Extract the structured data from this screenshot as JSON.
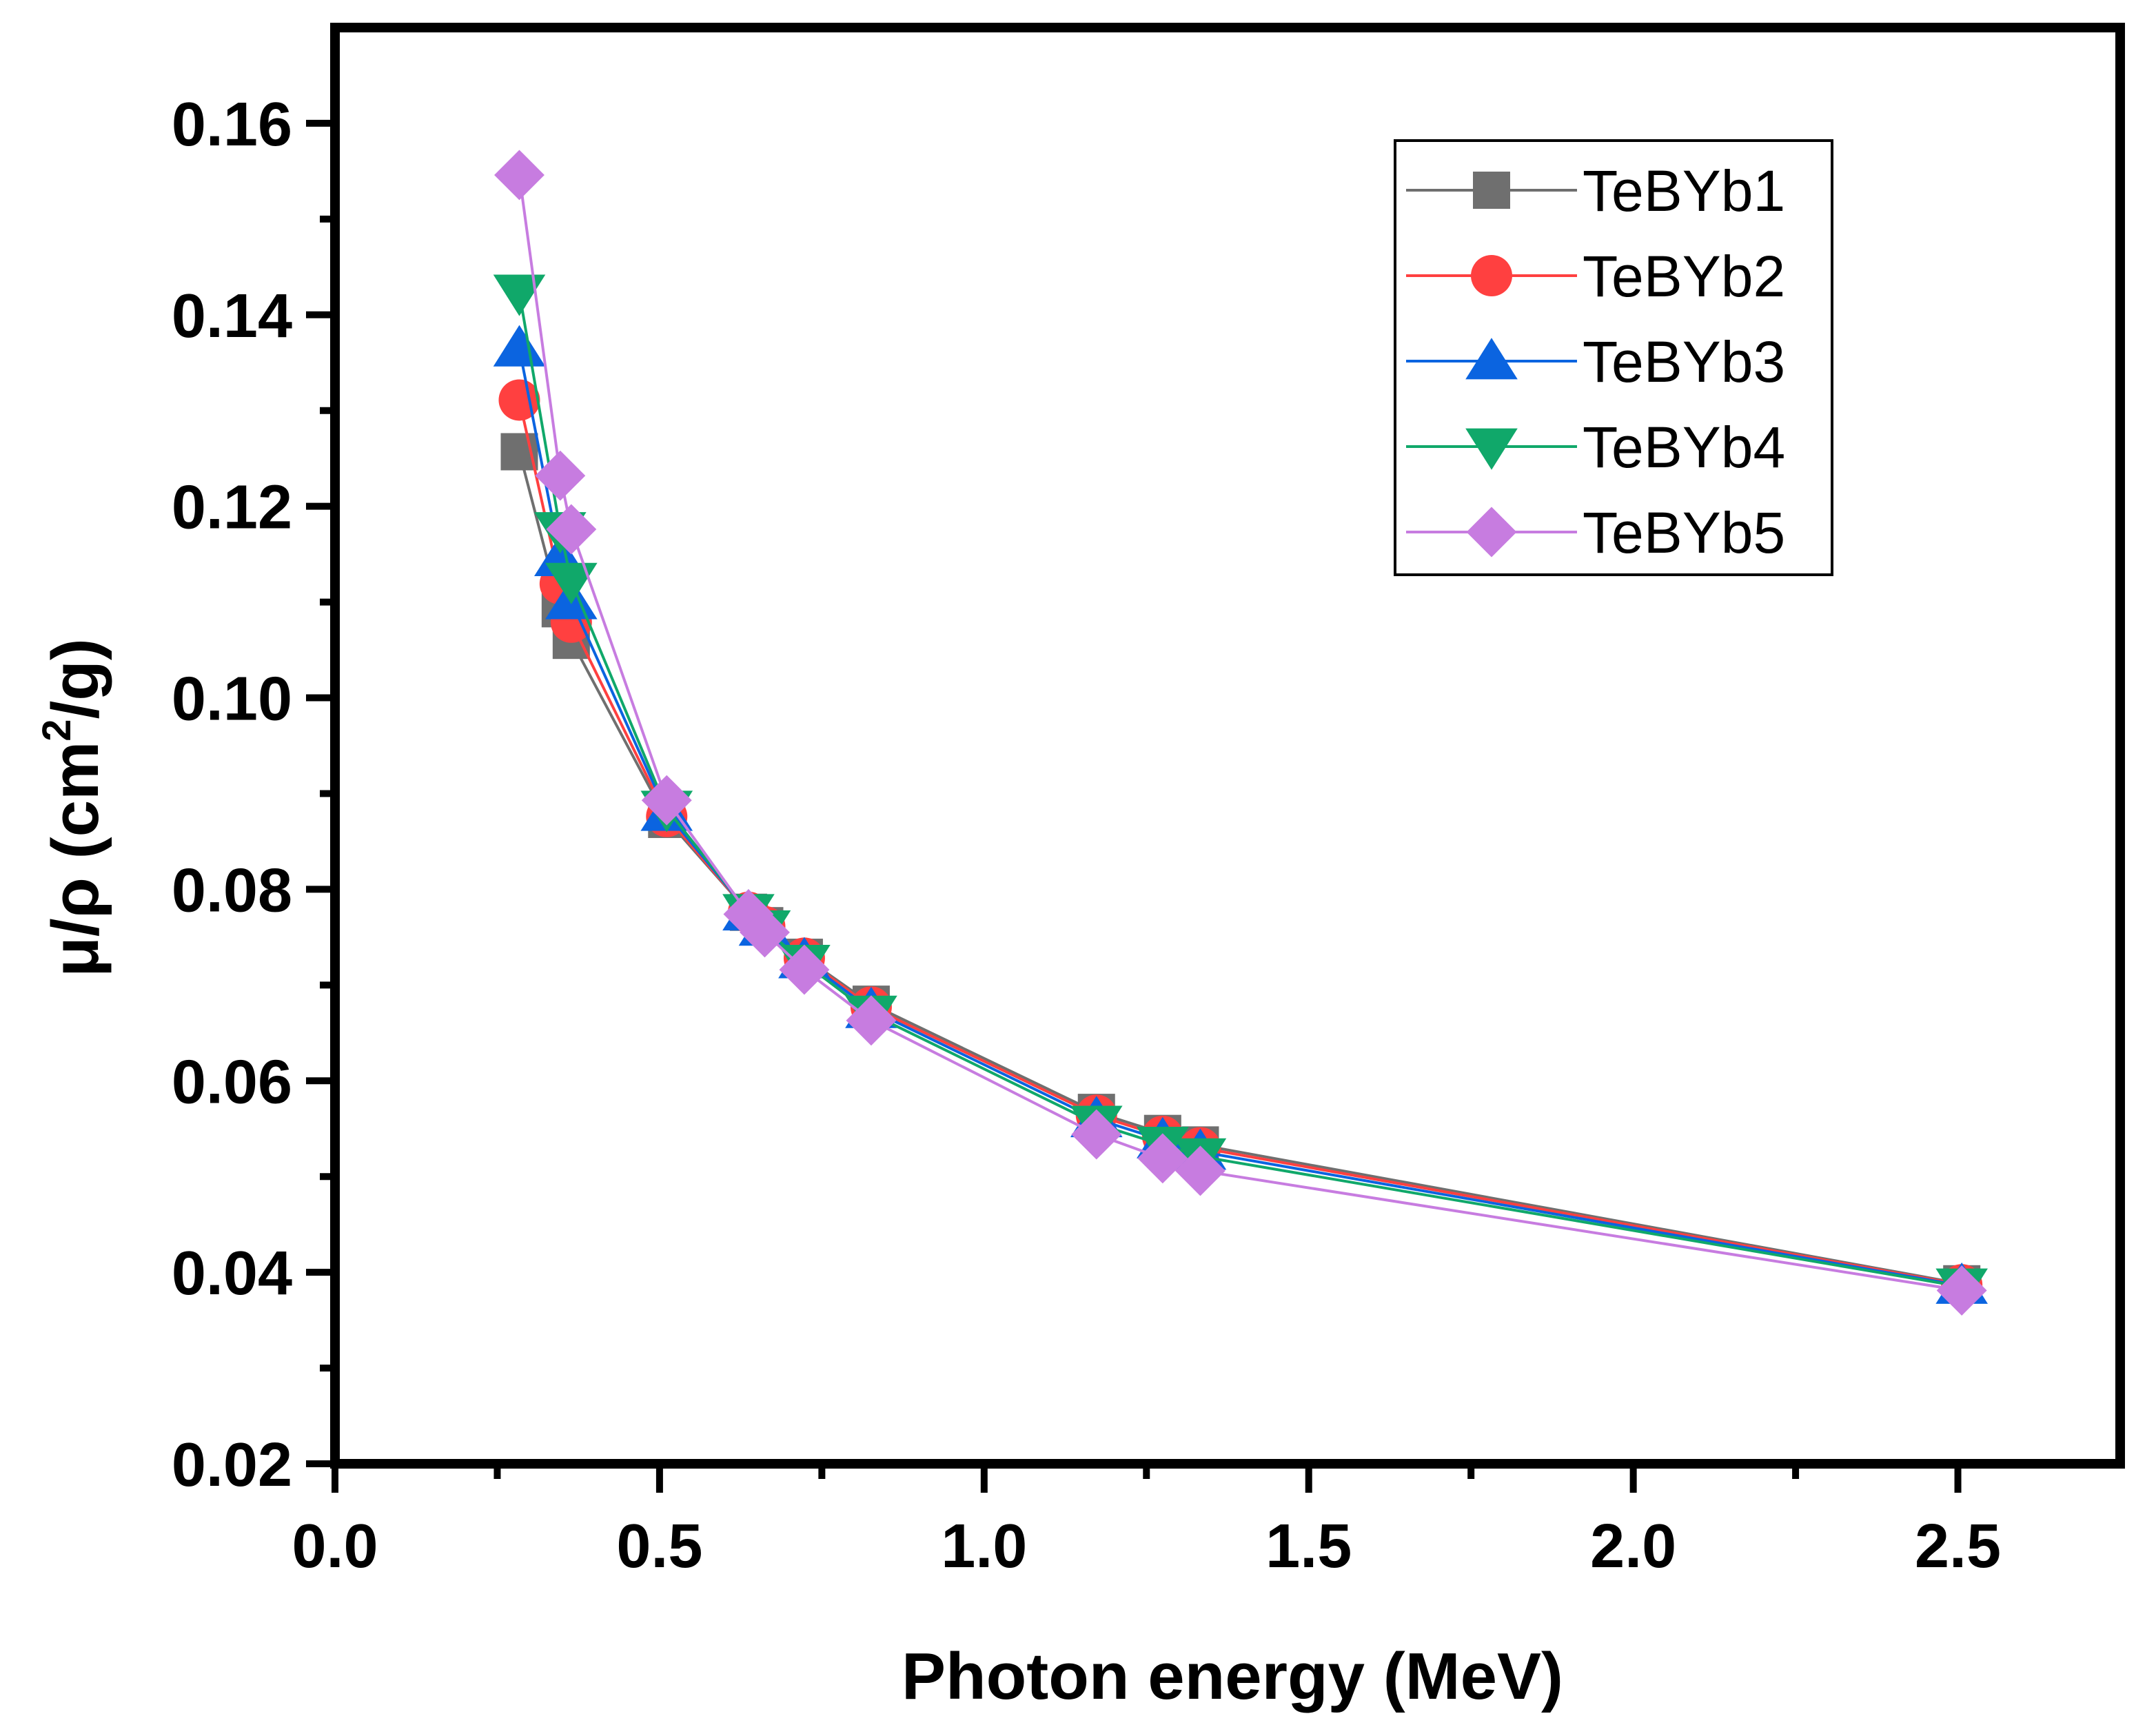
{
  "chart_data": {
    "type": "line",
    "xlabel": "Photon energy (MeV)",
    "ylabel": {
      "main": "μ/ρ (cm",
      "sup": "2",
      "tail": "/g)"
    },
    "xlim": [
      0,
      2.75
    ],
    "ylim": [
      0.02,
      0.17
    ],
    "x_ticks": [
      0.0,
      0.5,
      1.0,
      1.5,
      2.0,
      2.5
    ],
    "x_tick_labels": [
      "0.0",
      "0.5",
      "1.0",
      "1.5",
      "2.0",
      "2.5"
    ],
    "y_ticks": [
      0.02,
      0.04,
      0.06,
      0.08,
      0.1,
      0.12,
      0.14,
      0.16
    ],
    "y_tick_labels": [
      "0.02",
      "0.04",
      "0.06",
      "0.08",
      "0.10",
      "0.12",
      "0.14",
      "0.16"
    ],
    "x": [
      0.284,
      0.347,
      0.364,
      0.511,
      0.637,
      0.662,
      0.723,
      0.826,
      1.173,
      1.275,
      1.333,
      2.506
    ],
    "series": [
      {
        "name": "TeBYb1",
        "color": "#6f6f6f",
        "marker": "square",
        "values": [
          0.1257,
          0.1093,
          0.106,
          0.0873,
          0.0776,
          0.0762,
          0.0729,
          0.068,
          0.0567,
          0.0545,
          0.0533,
          0.0388
        ]
      },
      {
        "name": "TeBYb2",
        "color": "#ff4040",
        "marker": "circle",
        "values": [
          0.1311,
          0.1119,
          0.1079,
          0.0876,
          0.0776,
          0.0761,
          0.0728,
          0.0677,
          0.0564,
          0.0542,
          0.053,
          0.0387
        ]
      },
      {
        "name": "TeBYb3",
        "color": "#0b64e0",
        "marker": "triangle-up",
        "values": [
          0.1365,
          0.1146,
          0.1101,
          0.088,
          0.0776,
          0.076,
          0.0726,
          0.0674,
          0.056,
          0.0538,
          0.0526,
          0.0386
        ]
      },
      {
        "name": "TeBYb4",
        "color": "#10a86a",
        "marker": "triangle-down",
        "values": [
          0.1423,
          0.1175,
          0.1122,
          0.0884,
          0.0776,
          0.0759,
          0.0723,
          0.067,
          0.0555,
          0.0533,
          0.0521,
          0.0385
        ]
      },
      {
        "name": "TeBYb5",
        "color": "#c77ce0",
        "marker": "diamond",
        "values": [
          0.1546,
          0.1232,
          0.1176,
          0.0893,
          0.0774,
          0.0755,
          0.0716,
          0.0663,
          0.0544,
          0.0519,
          0.0506,
          0.0381
        ]
      }
    ],
    "legend_position": "top-right",
    "grid": false
  }
}
